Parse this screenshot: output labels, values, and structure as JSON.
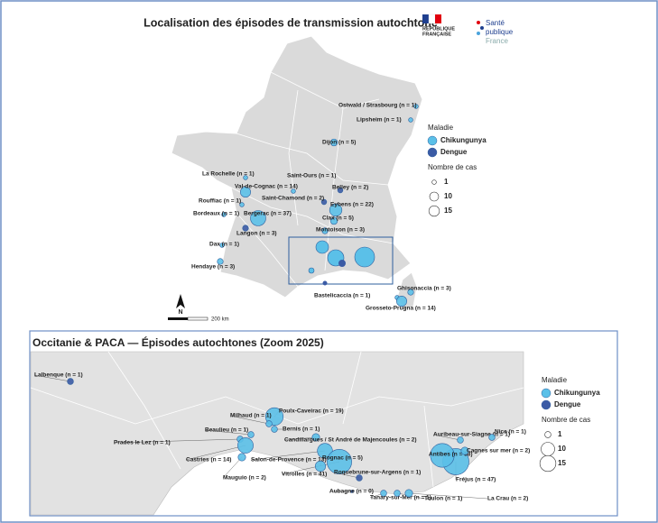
{
  "header": {
    "title": "Localisation des épisodes de transmission autochtone",
    "logo_republique": [
      "RÉPUBLIQUE",
      "FRANÇAISE"
    ],
    "logo_sante": [
      "Santé",
      "publique",
      "France"
    ]
  },
  "main_map": {
    "north": "N",
    "scale": "200 km",
    "legend": {
      "title": "Maladie",
      "items": [
        "Chikungunya",
        "Dengue"
      ],
      "size_title": "Nombre de cas",
      "sizes": [
        1,
        10,
        15
      ]
    },
    "chikungunya": [
      {
        "label": "Ostwald / Strasbourg (n = 1)",
        "cases": 1
      },
      {
        "label": "Lipsheim (n = 1)",
        "cases": 1
      },
      {
        "label": "Dijon (n = 5)",
        "cases": 5
      },
      {
        "label": "La Rochelle (n = 1)",
        "cases": 1
      },
      {
        "label": "Val-de-Cognac (n = 14)",
        "cases": 14
      },
      {
        "label": "Saint-Ours (n = 1)",
        "cases": 1
      },
      {
        "label": "Rouffiac (n = 1)",
        "cases": 1
      },
      {
        "label": "Eybens (n = 22)",
        "cases": 22
      },
      {
        "label": "Bordeaux (n = 1)",
        "cases": 1
      },
      {
        "label": "Bergerac (n = 37)",
        "cases": 37
      },
      {
        "label": "Clax (n = 5)",
        "cases": 5
      },
      {
        "label": "Montoison (n = 3)",
        "cases": 3
      },
      {
        "label": "Dax (n = 1)",
        "cases": 1
      },
      {
        "label": "Hendaye (n = 3)",
        "cases": 3
      },
      {
        "label": "Ghisonaccia (n = 3)",
        "cases": 3
      },
      {
        "label": "Bastelicaccia (n = 1)",
        "cases": 1
      },
      {
        "label": "Grosseto-Prugna (n = 14)",
        "cases": 14
      }
    ],
    "dengue": [
      {
        "label": "Saint-Chamond (n = 2)",
        "cases": 2
      },
      {
        "label": "Belley (n = 2)",
        "cases": 2
      },
      {
        "label": "Langon (n = 3)",
        "cases": 3
      }
    ]
  },
  "zoom_map": {
    "title": "Occitanie & PACA — Épisodes autochtones (Zoom 2025)",
    "legend": {
      "title": "Maladie",
      "items": [
        "Chikungunya",
        "Dengue"
      ],
      "size_title": "Nombre de cas",
      "sizes": [
        1,
        10,
        15
      ]
    },
    "chikungunya": [
      {
        "label": "Poulx-Caveirac (n = 19)",
        "cases": 19
      },
      {
        "label": "Milhaud (n = 1)",
        "cases": 1
      },
      {
        "label": "Bernis (n = 1)",
        "cases": 1
      },
      {
        "label": "Beaulieu (n = 1)",
        "cases": 1
      },
      {
        "label": "Candillargues / St André de Majencoules (n = 2)",
        "cases": 2
      },
      {
        "label": "Prades le Lez (n = 1)",
        "cases": 1
      },
      {
        "label": "Castries (n = 14)",
        "cases": 14
      },
      {
        "label": "Salon-de-Provence (n = 13)",
        "cases": 13
      },
      {
        "label": "Vitrolles (n = 41)",
        "cases": 41
      },
      {
        "label": "Rognac (n = 5)",
        "cases": 5
      },
      {
        "label": "Mauguio (n = 2)",
        "cases": 2
      },
      {
        "label": "Tanary-sur-Mer (n = 1)",
        "cases": 1
      },
      {
        "label": "Toulon (n = 1)",
        "cases": 1
      },
      {
        "label": "La Crau (n = 2)",
        "cases": 2
      },
      {
        "label": "Fréjus (n = 47)",
        "cases": 47
      },
      {
        "label": "Antibes (n = 38)",
        "cases": 38
      },
      {
        "label": "Cagnes sur mer (n = 2)",
        "cases": 2
      },
      {
        "label": "Auribeau-sur-Siagne (n = 1)",
        "cases": 1
      },
      {
        "label": "Nice (n = 1)",
        "cases": 1
      }
    ],
    "dengue": [
      {
        "label": "Lalbenque (n = 1)",
        "cases": 1
      },
      {
        "label": "Roquebrune-sur-Argens (n = 1)",
        "cases": 1
      },
      {
        "label": "Aubagne (n = 0)",
        "cases": 0
      }
    ]
  }
}
